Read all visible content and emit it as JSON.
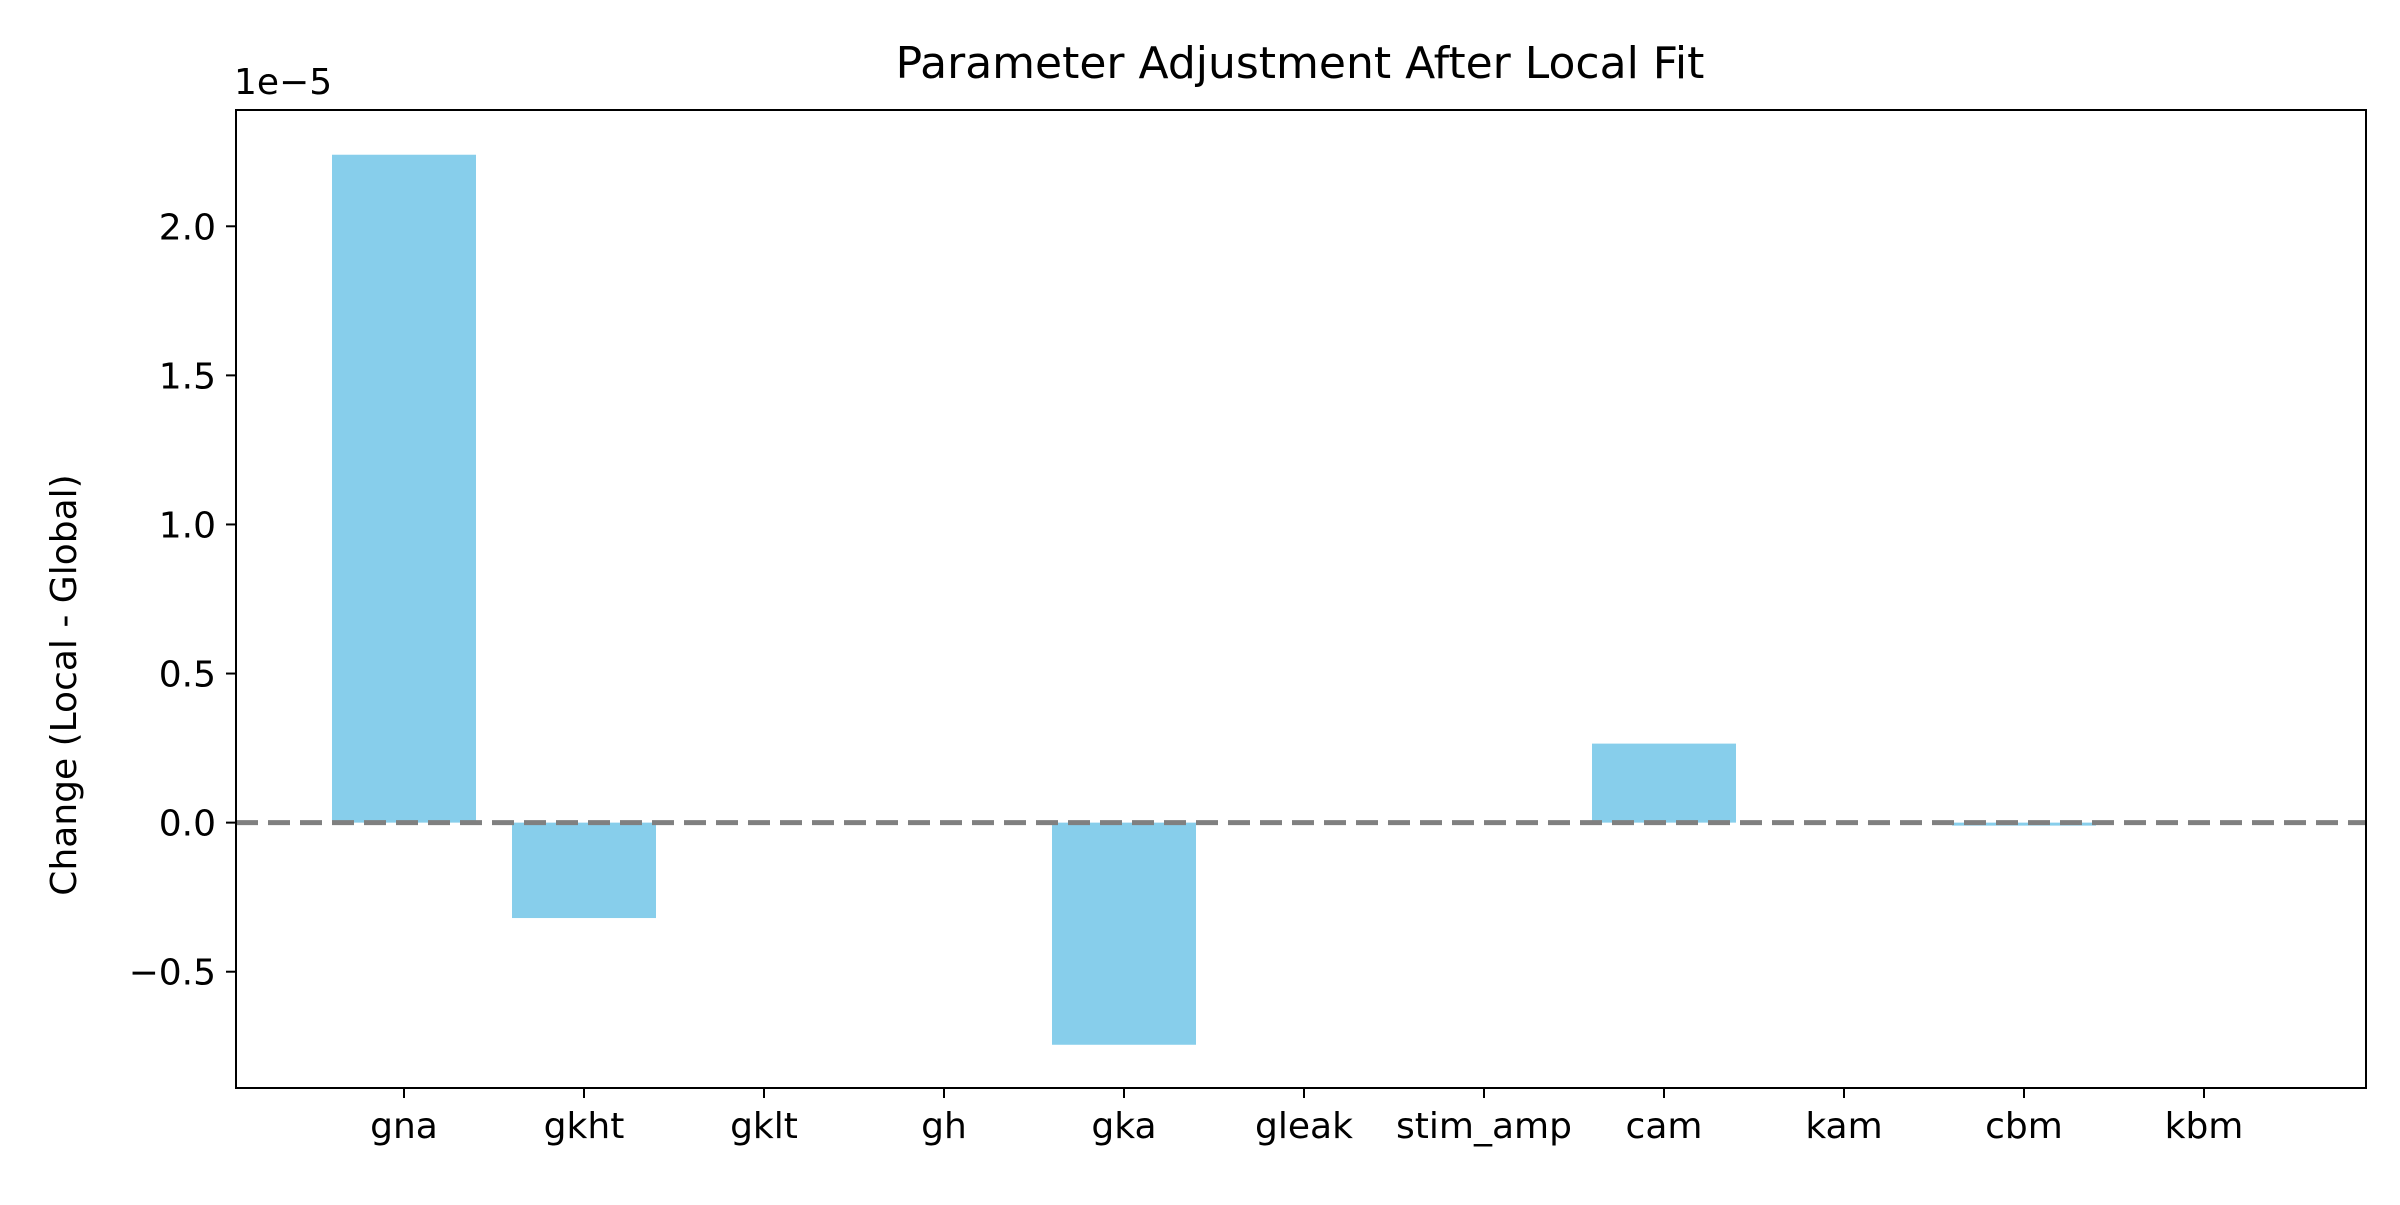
{
  "chart_data": {
    "type": "bar",
    "title": "Parameter Adjustment After Local Fit",
    "xlabel": "",
    "ylabel": "Change (Local - Global)",
    "offset_label": "1e−5",
    "categories": [
      "gna",
      "gkht",
      "gklt",
      "gh",
      "gka",
      "gleak",
      "stim_amp",
      "cam",
      "kam",
      "cbm",
      "kbm"
    ],
    "values": [
      2.24e-05,
      -3.2e-06,
      0,
      0,
      -7.45e-06,
      0,
      0,
      2.65e-06,
      0,
      -1e-07,
      0
    ],
    "ylim": [
      -8.9e-06,
      2.39e-05
    ],
    "ytick_values": [
      -5e-06,
      0,
      5e-06,
      1e-05,
      1.5e-05,
      2e-05
    ],
    "ytick_labels": [
      "−0.5",
      "0.0",
      "0.5",
      "1.0",
      "1.5",
      "2.0"
    ],
    "reference_line": {
      "y": 0,
      "style": "dashed",
      "color": "#808080"
    },
    "bar_color": "#87ceeb",
    "grid": false,
    "legend": "none"
  }
}
